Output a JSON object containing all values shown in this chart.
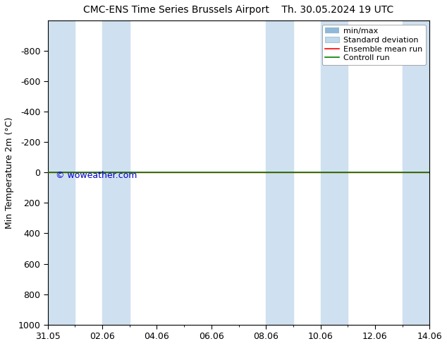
{
  "title_left": "CMC-ENS Time Series Brussels Airport",
  "title_right": "Th. 30.05.2024 19 UTC",
  "ylabel": "Min Temperature 2m (°C)",
  "ylim": [
    -1000,
    1000
  ],
  "yticks": [
    -800,
    -600,
    -400,
    -200,
    0,
    200,
    400,
    600,
    800,
    1000
  ],
  "xtick_labels": [
    "31.05",
    "02.06",
    "04.06",
    "06.06",
    "08.06",
    "10.06",
    "12.06",
    "14.06"
  ],
  "xtick_positions": [
    0,
    2,
    4,
    6,
    8,
    10,
    12,
    14
  ],
  "shaded_regions": [
    [
      0,
      1
    ],
    [
      2,
      3
    ],
    [
      8,
      9
    ],
    [
      10,
      11
    ],
    [
      13,
      14
    ]
  ],
  "shaded_color": "#cfe0f0",
  "control_run_y": 0,
  "ensemble_mean_y": 0,
  "control_run_color": "#008000",
  "ensemble_mean_color": "#ff0000",
  "watermark": "© woweather.com",
  "watermark_color": "#0000cc",
  "legend_items": [
    "min/max",
    "Standard deviation",
    "Ensemble mean run",
    "Controll run"
  ],
  "background_color": "#ffffff",
  "plot_bg_color": "#ffffff"
}
